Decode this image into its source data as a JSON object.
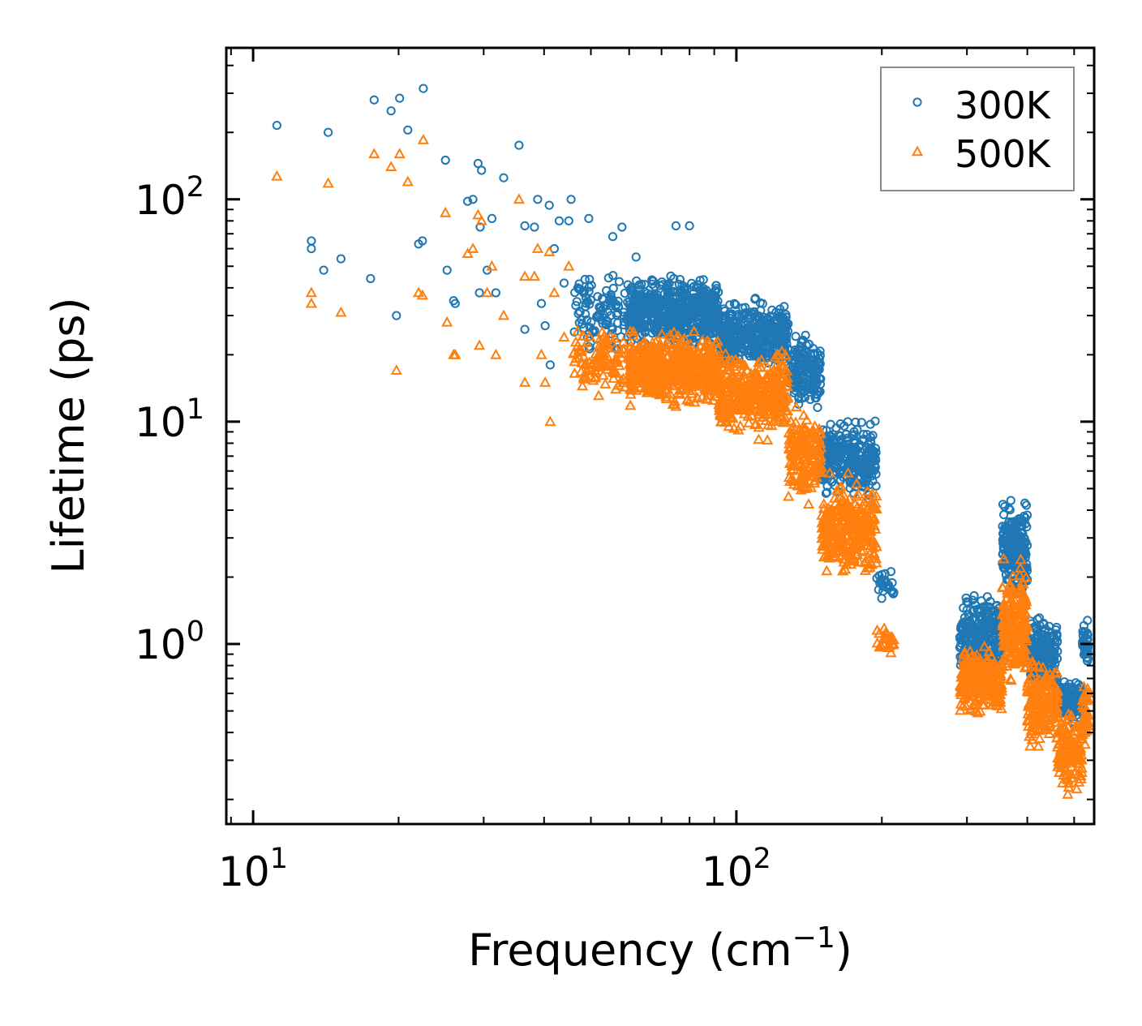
{
  "chart_data": {
    "type": "scatter",
    "xscale": "log",
    "yscale": "log",
    "xlabel": "Frequency (cm",
    "xlabel_sup": "−1",
    "xlabel_tail": ")",
    "ylabel": "Lifetime (ps)",
    "xlim": [
      8.8,
      550
    ],
    "ylim": [
      0.155,
      480
    ],
    "xticks": [
      {
        "value": 10,
        "base": "10",
        "exp": "1"
      },
      {
        "value": 100,
        "base": "10",
        "exp": "2"
      }
    ],
    "yticks": [
      {
        "value": 1,
        "base": "10",
        "exp": "0"
      },
      {
        "value": 10,
        "base": "10",
        "exp": "1"
      },
      {
        "value": 100,
        "base": "10",
        "exp": "2"
      }
    ],
    "legend": {
      "position": "top-right"
    },
    "series": [
      {
        "name": "300K",
        "marker": "circle",
        "color": "#1f77b4",
        "anchors": [
          [
            11.2,
            215
          ],
          [
            13.2,
            65
          ],
          [
            13.2,
            60
          ],
          [
            14.3,
            200
          ],
          [
            15.2,
            54
          ],
          [
            17.8,
            280
          ],
          [
            19.3,
            250
          ],
          [
            19.8,
            30
          ],
          [
            20.1,
            285
          ],
          [
            20.9,
            205
          ],
          [
            22.0,
            63
          ],
          [
            22.4,
            65
          ],
          [
            22.5,
            315
          ],
          [
            25.0,
            150
          ],
          [
            25.2,
            48
          ],
          [
            26.0,
            35
          ],
          [
            26.2,
            34
          ],
          [
            27.8,
            98
          ],
          [
            28.5,
            100
          ],
          [
            29.2,
            145
          ],
          [
            29.4,
            38
          ],
          [
            29.7,
            135
          ],
          [
            29.5,
            75
          ],
          [
            30.5,
            48
          ],
          [
            31.2,
            82
          ],
          [
            31.8,
            38
          ],
          [
            33.0,
            125
          ],
          [
            35.5,
            175
          ],
          [
            36.5,
            76
          ],
          [
            36.5,
            26
          ],
          [
            38.2,
            75
          ],
          [
            38.8,
            100
          ],
          [
            39.5,
            34
          ],
          [
            40.2,
            27
          ],
          [
            41.0,
            94
          ],
          [
            41.2,
            18
          ],
          [
            42.0,
            60
          ],
          [
            43.0,
            80
          ],
          [
            44.0,
            42
          ],
          [
            45.0,
            80
          ],
          [
            45.5,
            100
          ],
          [
            47.0,
            40
          ],
          [
            49.5,
            82
          ],
          [
            55.5,
            68
          ],
          [
            58.0,
            75
          ],
          [
            62.0,
            55
          ],
          [
            75.0,
            76
          ],
          [
            80.0,
            76
          ],
          [
            14.0,
            48
          ],
          [
            17.5,
            44
          ]
        ],
        "bands": [
          {
            "x0": 46,
            "x1": 60,
            "y0": 18,
            "y1": 52,
            "n": 110
          },
          {
            "x0": 60,
            "x1": 92,
            "y0": 20,
            "y1": 48,
            "n": 600
          },
          {
            "x0": 92,
            "x1": 128,
            "y0": 16,
            "y1": 38,
            "n": 380
          },
          {
            "x0": 128,
            "x1": 150,
            "y0": 10,
            "y1": 28,
            "n": 170
          },
          {
            "x0": 150,
            "x1": 195,
            "y0": 4.2,
            "y1": 11,
            "n": 300
          },
          {
            "x0": 195,
            "x1": 212,
            "y0": 1.5,
            "y1": 2.4,
            "n": 25
          },
          {
            "x0": 290,
            "x1": 355,
            "y0": 0.65,
            "y1": 1.9,
            "n": 260
          },
          {
            "x0": 355,
            "x1": 400,
            "y0": 1.4,
            "y1": 4.8,
            "n": 220
          },
          {
            "x0": 400,
            "x1": 462,
            "y0": 0.55,
            "y1": 1.5,
            "n": 180
          },
          {
            "x0": 462,
            "x1": 520,
            "y0": 0.42,
            "y1": 0.75,
            "n": 130
          },
          {
            "x0": 520,
            "x1": 535,
            "y0": 0.75,
            "y1": 1.35,
            "n": 40
          }
        ]
      },
      {
        "name": "500K",
        "marker": "triangle",
        "color": "#ff7f0e",
        "anchors": [
          [
            11.2,
            127
          ],
          [
            13.2,
            38
          ],
          [
            13.2,
            34
          ],
          [
            14.3,
            118
          ],
          [
            15.2,
            31
          ],
          [
            17.8,
            160
          ],
          [
            19.3,
            140
          ],
          [
            19.8,
            17
          ],
          [
            20.1,
            160
          ],
          [
            20.9,
            120
          ],
          [
            22.0,
            38
          ],
          [
            22.4,
            37
          ],
          [
            22.5,
            185
          ],
          [
            25.0,
            87
          ],
          [
            25.2,
            28
          ],
          [
            26.0,
            20
          ],
          [
            26.2,
            20
          ],
          [
            27.8,
            57
          ],
          [
            28.5,
            60
          ],
          [
            29.2,
            85
          ],
          [
            29.4,
            22
          ],
          [
            29.7,
            80
          ],
          [
            30.5,
            38
          ],
          [
            31.2,
            50
          ],
          [
            31.8,
            20
          ],
          [
            33.0,
            30
          ],
          [
            35.5,
            100
          ],
          [
            36.5,
            45
          ],
          [
            36.5,
            15
          ],
          [
            38.2,
            45
          ],
          [
            38.8,
            60
          ],
          [
            39.5,
            20
          ],
          [
            40.2,
            15
          ],
          [
            41.0,
            58
          ],
          [
            41.2,
            10
          ],
          [
            42.0,
            38
          ],
          [
            44.0,
            24
          ],
          [
            45.0,
            50
          ],
          [
            47.0,
            22
          ]
        ],
        "bands": [
          {
            "x0": 46,
            "x1": 60,
            "y0": 12,
            "y1": 30,
            "n": 110
          },
          {
            "x0": 60,
            "x1": 92,
            "y0": 11,
            "y1": 27,
            "n": 600
          },
          {
            "x0": 92,
            "x1": 128,
            "y0": 8,
            "y1": 22,
            "n": 380
          },
          {
            "x0": 128,
            "x1": 150,
            "y0": 3.8,
            "y1": 14,
            "n": 170
          },
          {
            "x0": 150,
            "x1": 195,
            "y0": 1.8,
            "y1": 6,
            "n": 300
          },
          {
            "x0": 195,
            "x1": 212,
            "y0": 0.85,
            "y1": 1.3,
            "n": 25
          },
          {
            "x0": 290,
            "x1": 355,
            "y0": 0.45,
            "y1": 1.05,
            "n": 260
          },
          {
            "x0": 355,
            "x1": 400,
            "y0": 0.6,
            "y1": 2.6,
            "n": 220
          },
          {
            "x0": 400,
            "x1": 462,
            "y0": 0.3,
            "y1": 0.9,
            "n": 180
          },
          {
            "x0": 462,
            "x1": 520,
            "y0": 0.2,
            "y1": 0.55,
            "n": 130
          },
          {
            "x0": 520,
            "x1": 535,
            "y0": 0.3,
            "y1": 0.8,
            "n": 40
          }
        ]
      }
    ]
  }
}
